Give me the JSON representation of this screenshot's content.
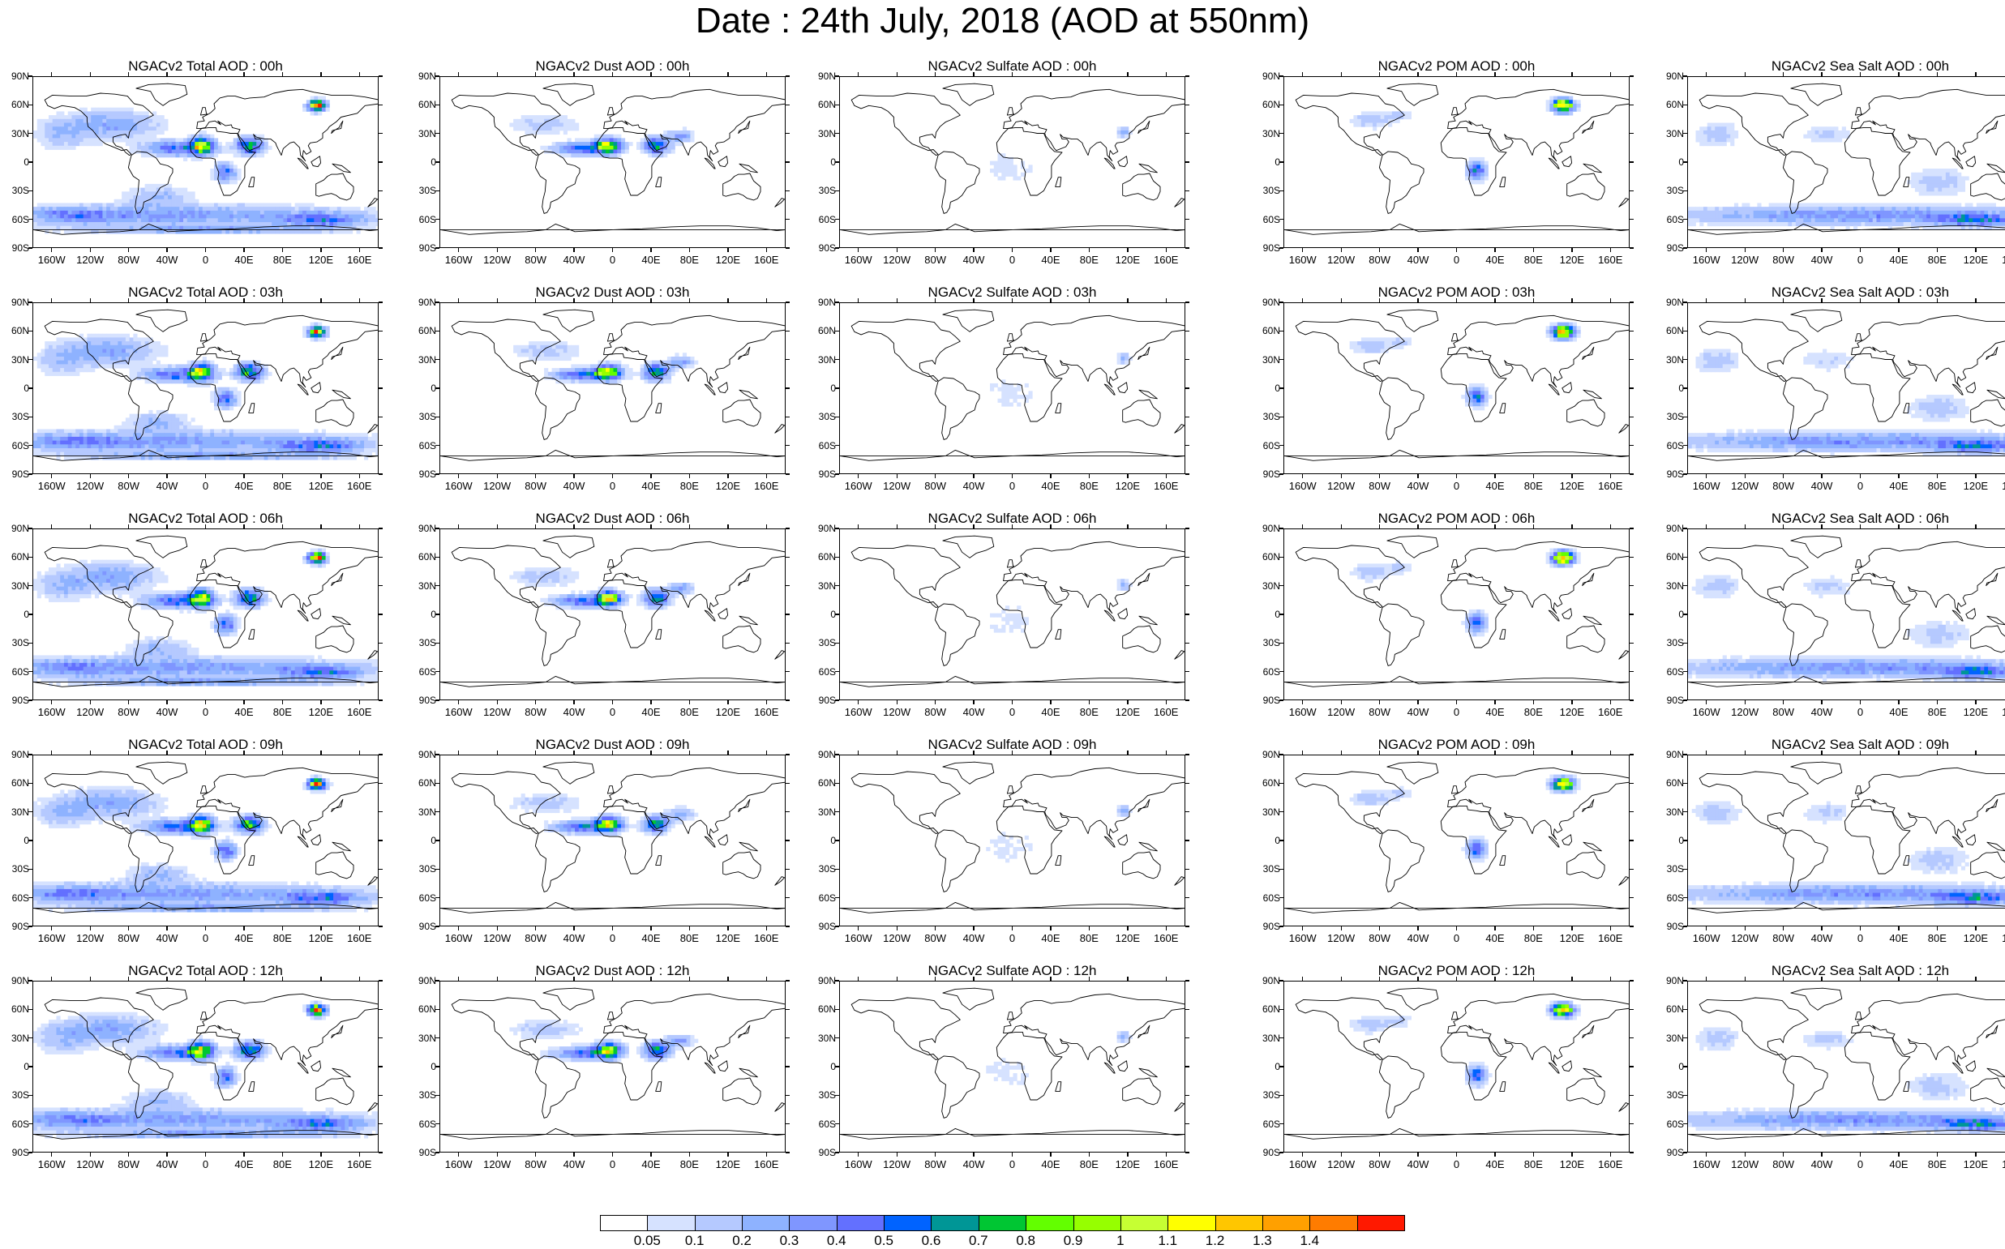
{
  "title": "Date : 24th July, 2018 (AOD at 550nm)",
  "latitude_labels": [
    "90N",
    "60N",
    "30N",
    "0",
    "30S",
    "60S",
    "90S"
  ],
  "longitude_labels": [
    "160W",
    "120W",
    "80W",
    "40W",
    "0",
    "40E",
    "80E",
    "120E",
    "160E"
  ],
  "species": [
    {
      "id": "total",
      "cmax": 1.4
    },
    {
      "id": "dust",
      "cmax": 1.0
    },
    {
      "id": "sulfate",
      "cmax": 0.5
    },
    {
      "id": "pom",
      "cmax": 1.4
    },
    {
      "id": "seasalt",
      "cmax": 0.5
    }
  ],
  "panels": [
    {
      "row": 0,
      "col": 0,
      "species": "total",
      "title": "NGACv2 Total AOD : 00h"
    },
    {
      "row": 0,
      "col": 1,
      "species": "dust",
      "title": "NGACv2 Dust AOD : 00h"
    },
    {
      "row": 0,
      "col": 2,
      "species": "sulfate",
      "title": "NGACv2 Sulfate AOD : 00h"
    },
    {
      "row": 0,
      "col": 3,
      "species": "pom",
      "title": "NGACv2 POM AOD : 00h"
    },
    {
      "row": 0,
      "col": 4,
      "species": "seasalt",
      "title": "NGACv2 Sea Salt AOD : 00h"
    },
    {
      "row": 1,
      "col": 0,
      "species": "total",
      "title": "NGACv2 Total AOD : 03h"
    },
    {
      "row": 1,
      "col": 1,
      "species": "dust",
      "title": "NGACv2 Dust AOD : 03h"
    },
    {
      "row": 1,
      "col": 2,
      "species": "sulfate",
      "title": "NGACv2 Sulfate AOD : 03h"
    },
    {
      "row": 1,
      "col": 3,
      "species": "pom",
      "title": "NGACv2 POM AOD : 03h"
    },
    {
      "row": 1,
      "col": 4,
      "species": "seasalt",
      "title": "NGACv2 Sea Salt AOD : 03h"
    },
    {
      "row": 2,
      "col": 0,
      "species": "total",
      "title": "NGACv2 Total AOD : 06h"
    },
    {
      "row": 2,
      "col": 1,
      "species": "dust",
      "title": "NGACv2 Dust AOD : 06h"
    },
    {
      "row": 2,
      "col": 2,
      "species": "sulfate",
      "title": "NGACv2 Sulfate AOD : 06h"
    },
    {
      "row": 2,
      "col": 3,
      "species": "pom",
      "title": "NGACv2 POM AOD : 06h"
    },
    {
      "row": 2,
      "col": 4,
      "species": "seasalt",
      "title": "NGACv2 Sea Salt AOD : 06h"
    },
    {
      "row": 3,
      "col": 0,
      "species": "total",
      "title": "NGACv2 Total AOD : 09h"
    },
    {
      "row": 3,
      "col": 1,
      "species": "dust",
      "title": "NGACv2 Dust AOD : 09h"
    },
    {
      "row": 3,
      "col": 2,
      "species": "sulfate",
      "title": "NGACv2 Sulfate AOD : 09h"
    },
    {
      "row": 3,
      "col": 3,
      "species": "pom",
      "title": "NGACv2 POM AOD : 09h"
    },
    {
      "row": 3,
      "col": 4,
      "species": "seasalt",
      "title": "NGACv2 Sea Salt  AOD : 09h"
    },
    {
      "row": 4,
      "col": 0,
      "species": "total",
      "title": "NGACv2 Total AOD  : 12h"
    },
    {
      "row": 4,
      "col": 1,
      "species": "dust",
      "title": "NGACv2 Dust AOD : 12h"
    },
    {
      "row": 4,
      "col": 2,
      "species": "sulfate",
      "title": "NGACv2 Sulfate AOD : 12h"
    },
    {
      "row": 4,
      "col": 3,
      "species": "pom",
      "title": "NGACv2 POM  AOD : 12h"
    },
    {
      "row": 4,
      "col": 4,
      "species": "seasalt",
      "title": "NGACv2 Sea Salt AOD : 12h"
    }
  ],
  "colorbar": {
    "labels": [
      "0.05",
      "0.1",
      "0.2",
      "0.3",
      "0.4",
      "0.5",
      "0.6",
      "0.7",
      "0.8",
      "0.9",
      "1",
      "1.1",
      "1.2",
      "1.3",
      "1.4"
    ],
    "colors": [
      "#ffffff",
      "#d6e2ff",
      "#b5c9ff",
      "#8eb2ff",
      "#7f96ff",
      "#6370ff",
      "#0063ff",
      "#009696",
      "#00c633",
      "#63ff00",
      "#96ff00",
      "#c6ff33",
      "#ffff00",
      "#ffc600",
      "#ffa000",
      "#ff7c00",
      "#ff1900"
    ]
  }
}
